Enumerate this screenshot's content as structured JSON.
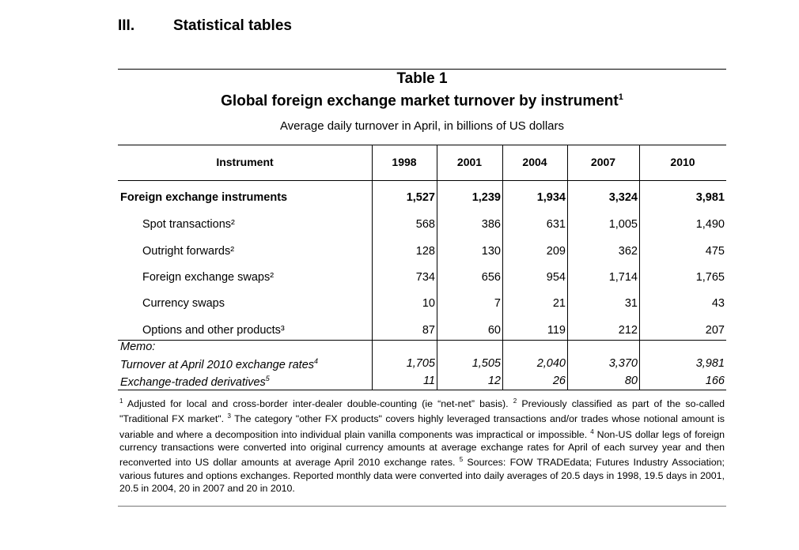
{
  "section": {
    "number": "III.",
    "title": "Statistical tables"
  },
  "table": {
    "number": "Table 1",
    "title": "Global foreign exchange market turnover by instrument",
    "title_sup": "1",
    "subtitle": "Average daily turnover in April, in billions of US dollars",
    "header": {
      "instrument": "Instrument",
      "years": [
        "1998",
        "2001",
        "2004",
        "2007",
        "2010"
      ]
    },
    "rows": [
      {
        "label": "Foreign exchange instruments",
        "style": "bold",
        "values": [
          "1,527",
          "1,239",
          "1,934",
          "3,324",
          "3,981"
        ]
      },
      {
        "label": "Spot transactions²",
        "style": "indent",
        "values": [
          "568",
          "386",
          "631",
          "1,005",
          "1,490"
        ]
      },
      {
        "label": "Outright forwards²",
        "style": "indent",
        "values": [
          "128",
          "130",
          "209",
          "362",
          "475"
        ]
      },
      {
        "label": "Foreign exchange swaps²",
        "style": "indent",
        "values": [
          "734",
          "656",
          "954",
          "1,714",
          "1,765"
        ]
      },
      {
        "label": "Currency swaps",
        "style": "indent",
        "values": [
          "10",
          "7",
          "21",
          "31",
          "43"
        ]
      },
      {
        "label": "Options and other products³",
        "style": "indent",
        "values": [
          "87",
          "60",
          "119",
          "212",
          "207"
        ]
      }
    ],
    "memo": {
      "label": "Memo:",
      "rows": [
        {
          "label": "Turnover at April 2010 exchange rates",
          "sup": "4",
          "values": [
            "1,705",
            "1,505",
            "2,040",
            "3,370",
            "3,981"
          ]
        },
        {
          "label": "Exchange-traded derivatives",
          "sup": "5",
          "values": [
            "11",
            "12",
            "26",
            "80",
            "166"
          ]
        }
      ]
    },
    "footnotes": [
      {
        "sup": "1",
        "text": " Adjusted for local and cross-border inter-dealer double-counting (ie “net-net” basis). "
      },
      {
        "sup": "2",
        "text": " Previously classified as part of the so-called \"Traditional FX market\". "
      },
      {
        "sup": "3",
        "text": " The category \"other FX products\" covers highly leveraged transactions and/or trades whose notional amount is variable and where a decomposition into individual plain vanilla components was impractical or impossible. "
      },
      {
        "sup": "4",
        "text": " Non-US dollar legs of foreign currency transactions were converted into original currency amounts at average exchange rates for April of each survey year and then reconverted into US dollar amounts at average April 2010 exchange rates. "
      },
      {
        "sup": "5",
        "text": " Sources: FOW TRADEdata; Futures Industry Association; various futures and options exchanges. Reported monthly data were converted into daily averages of 20.5 days in 1998, 19.5 days in 2001, 20.5 in 2004, 20 in 2007 and 20 in 2010."
      }
    ]
  }
}
